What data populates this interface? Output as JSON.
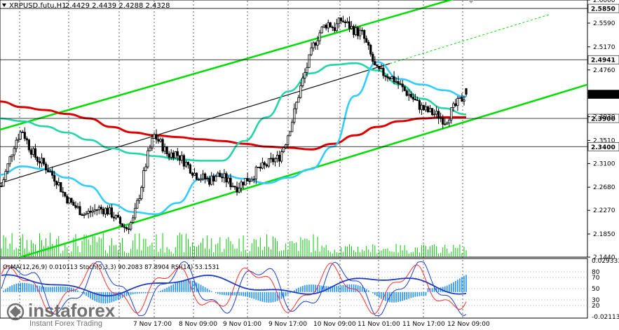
{
  "header": {
    "symbol": "XRPUSD.futu,H1",
    "ohlc": "2.4429 2.4439 2.4288 2.4328"
  },
  "oscillator_header": "OsMA(12,26,9) 0.010113  Stoch(5,3,3) 90.2083 87.8904  RSI(14) 53.1531",
  "watermark": {
    "brand": "instaforex",
    "tagline": "Instant Forex Trading"
  },
  "price_axis": [
    "2.6000",
    "2.5590",
    "2.5170",
    "2.4760",
    "2.4350",
    "2.3930",
    "2.3510",
    "2.3100",
    "2.2680",
    "2.2270",
    "2.1850",
    "2.1440"
  ],
  "highlighted_prices": [
    {
      "label": "2.5850",
      "value": 2.585,
      "bg": "#ffffff",
      "fg": "#000000"
    },
    {
      "label": "2.4941",
      "value": 2.4941,
      "bg": "#ffffff",
      "fg": "#000000"
    },
    {
      "label": "2.4328",
      "value": 2.4328,
      "bg": "#000000",
      "fg": "#ffffff"
    },
    {
      "label": "2.3900",
      "value": 2.39,
      "bg": "#ffffff",
      "fg": "#000000"
    },
    {
      "label": "2.3400",
      "value": 2.34,
      "bg": "#ffffff",
      "fg": "#000000"
    }
  ],
  "osc_axis": [
    {
      "label": "0.029333",
      "value": 100
    },
    {
      "label": "80",
      "value": 80
    },
    {
      "label": "70",
      "value": 70
    },
    {
      "label": "50",
      "value": 50
    },
    {
      "label": "30",
      "value": 30
    },
    {
      "label": "20",
      "value": 20
    },
    {
      "label": "-0.02113",
      "value": 0
    }
  ],
  "time_axis": [
    "7 Nov 17:00",
    "8 Nov 09:00",
    "9 Nov 01:00",
    "9 Nov 17:00",
    "10 Nov 09:00",
    "11 Nov 01:00",
    "11 Nov 17:00",
    "12 Nov 09:00"
  ],
  "colors": {
    "candle": "#000000",
    "channel": "#00dd00",
    "ma_red": "#dd0000",
    "ma_teal": "#22d6a6",
    "ma_cyan": "#33ccff",
    "grid": "#000000",
    "volume": "#00cc00",
    "osma": "#1e90ff",
    "stoch_main": "#1e3cc8",
    "stoch_signal": "#ff2d2d",
    "rsi": "#1e3cc8"
  },
  "chart_data": {
    "type": "candlestick",
    "symbol": "XRPUSD.futu",
    "timeframe": "H1",
    "ylim": [
      2.144,
      2.6
    ],
    "last_price": 2.4328,
    "ohlc_last": {
      "open": 2.4429,
      "high": 2.4439,
      "low": 2.4288,
      "close": 2.4328
    },
    "x_tick_labels": [
      "7 Nov 17:00",
      "8 Nov 09:00",
      "9 Nov 01:00",
      "9 Nov 17:00",
      "10 Nov 09:00",
      "11 Nov 01:00",
      "11 Nov 17:00",
      "12 Nov 09:00"
    ],
    "close_path": [
      2.27,
      2.31,
      2.35,
      2.37,
      2.34,
      2.32,
      2.31,
      2.295,
      2.28,
      2.255,
      2.24,
      2.23,
      2.22,
      2.225,
      2.23,
      2.228,
      2.22,
      2.205,
      2.195,
      2.21,
      2.26,
      2.32,
      2.36,
      2.345,
      2.325,
      2.33,
      2.318,
      2.305,
      2.29,
      2.285,
      2.28,
      2.29,
      2.285,
      2.275,
      2.268,
      2.28,
      2.285,
      2.3,
      2.305,
      2.315,
      2.32,
      2.35,
      2.39,
      2.44,
      2.48,
      2.52,
      2.545,
      2.56,
      2.55,
      2.565,
      2.555,
      2.545,
      2.54,
      2.51,
      2.475,
      2.47,
      2.465,
      2.455,
      2.44,
      2.43,
      2.415,
      2.405,
      2.4,
      2.395,
      2.385,
      2.405,
      2.42,
      2.4328
    ],
    "moving_averages": [
      {
        "color": "red",
        "values": [
          2.42,
          2.41,
          2.405,
          2.398,
          2.39,
          2.375,
          2.365,
          2.36,
          2.357,
          2.353,
          2.35,
          2.345,
          2.34,
          2.338,
          2.335,
          2.345,
          2.36,
          2.375,
          2.385,
          2.39,
          2.392,
          2.392
        ]
      },
      {
        "color": "teal",
        "values": [
          2.39,
          2.385,
          2.376,
          2.365,
          2.352,
          2.337,
          2.328,
          2.323,
          2.318,
          2.315,
          2.315,
          2.35,
          2.392,
          2.438,
          2.47,
          2.485,
          2.488,
          2.475,
          2.45,
          2.425,
          2.408,
          2.397
        ]
      },
      {
        "color": "cyan",
        "values": [
          2.29,
          2.305,
          2.3,
          2.285,
          2.27,
          2.238,
          2.224,
          2.22,
          2.24,
          2.282,
          2.29,
          2.283,
          2.275,
          2.285,
          2.3,
          2.34,
          2.43,
          2.49,
          2.46,
          2.45,
          2.44,
          2.428
        ]
      }
    ],
    "channel_lines": [
      {
        "name": "upper",
        "from": [
          0,
          2.37
        ],
        "to": [
          1,
          2.67
        ]
      },
      {
        "name": "middle",
        "from": [
          0,
          2.275
        ],
        "to": [
          0.75,
          2.515
        ]
      },
      {
        "name": "lower",
        "from": [
          0,
          2.133
        ],
        "to": [
          1,
          2.45
        ]
      }
    ],
    "oscillators": {
      "osma": 0.010113,
      "stoch_main": 90.2083,
      "stoch_signal": 87.8904,
      "rsi": 53.1531,
      "osc_range": [
        -0.02113,
        0.029333
      ]
    }
  }
}
